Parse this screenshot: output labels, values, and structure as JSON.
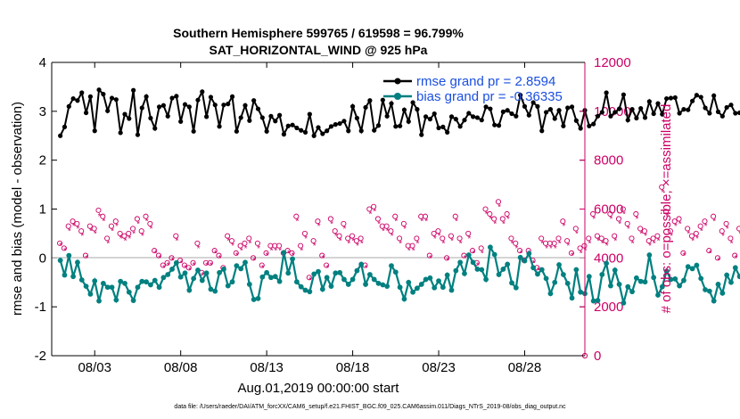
{
  "chart_data": {
    "type": "line",
    "title_line1": "Southern Hemisphere 599765 / 619598 = 96.799%",
    "title_line2": "SAT_HORIZONTAL_WIND @ 925 hPa",
    "ylabel_left": "rmse and bias (model - observation)",
    "ylabel_right": "# of obs: o=possible; ×=assimilated",
    "xlabel": "Aug.01,2019 00:00:00 start",
    "footer": "data file: /Users/raeder/DAI/ATM_forcXX/CAM6_setup/f.e21.FHIST_BGC.f09_025.CAM6assim.011/Diags_NTrS_2019-08/obs_diag_output.nc",
    "ylim_left": [
      -2,
      4
    ],
    "ylim_right": [
      0,
      12000
    ],
    "xlim_days": [
      0.5,
      31.5
    ],
    "left_ticks": [
      "4",
      "3",
      "2",
      "1",
      "0",
      "-1",
      "-2"
    ],
    "right_ticks": [
      "12000",
      "10000",
      "8000",
      "6000",
      "4000",
      "2000",
      "0"
    ],
    "x_ticks": [
      {
        "day": 3,
        "label": "08/03"
      },
      {
        "day": 8,
        "label": "08/08"
      },
      {
        "day": 13,
        "label": "08/13"
      },
      {
        "day": 18,
        "label": "08/18"
      },
      {
        "day": 23,
        "label": "08/23"
      },
      {
        "day": 28,
        "label": "08/28"
      }
    ],
    "legend": [
      {
        "name": "rmse grand pr = 2.8594",
        "color": "#000000"
      },
      {
        "name": "bias grand pr = -0.36335",
        "color": "#008080"
      }
    ],
    "steps_per_day": 4,
    "rmse": [
      2.5,
      2.68,
      3.1,
      3.26,
      3.22,
      3.38,
      2.97,
      3.3,
      2.6,
      3.44,
      3.35,
      3.01,
      3.27,
      3.24,
      2.56,
      2.94,
      2.85,
      3.43,
      2.52,
      3.07,
      3.3,
      2.86,
      2.65,
      3.09,
      3.12,
      2.9,
      3.27,
      3.31,
      2.79,
      3.14,
      3.09,
      2.59,
      3.23,
      3.4,
      2.89,
      3.29,
      3.13,
      2.69,
      3.13,
      3.15,
      3.3,
      2.59,
      2.87,
      3.12,
      2.81,
      3.22,
      3.05,
      2.87,
      2.59,
      2.9,
      2.8,
      2.92,
      2.53,
      2.7,
      2.72,
      2.66,
      2.61,
      2.57,
      2.94,
      2.5,
      2.67,
      2.54,
      2.6,
      2.69,
      2.73,
      2.75,
      2.8,
      2.6,
      3.1,
      2.86,
      2.6,
      3.08,
      3.22,
      2.61,
      2.71,
      3.23,
      2.9,
      3.16,
      2.69,
      2.7,
      3.03,
      2.79,
      3.18,
      3.04,
      2.52,
      2.89,
      2.84,
      2.95,
      2.66,
      2.68,
      2.57,
      2.89,
      2.84,
      2.69,
      2.82,
      2.96,
      2.89,
      2.87,
      2.82,
      3.09,
      3.05,
      2.72,
      2.71,
      2.99,
      3.02,
      2.95,
      2.9,
      3.33,
      3.1,
      2.92,
      3.18,
      3.1,
      2.6,
      2.98,
      3.04,
      2.85,
      3.02,
      2.7,
      3.07,
      3.09,
      2.81,
      2.65,
      3.02,
      2.7,
      2.74,
      2.9,
      2.98,
      3.38,
      2.9,
      2.98,
      3.05,
      3.34,
      2.82,
      3.04,
      2.86,
      3.06,
      2.87,
      3.2,
      2.95,
      3.16,
      2.94,
      3.26,
      3.27,
      3.28,
      2.96,
      3.04,
      3.03,
      3.21,
      3.33,
      3.29,
      3.07,
      2.96,
      3.32,
      2.99,
      2.9,
      3.08,
      3.13,
      2.96,
      2.97,
      2.82,
      2.95,
      3.23,
      2.85,
      2.81,
      2.88,
      2.69,
      3.08,
      2.8,
      2.74,
      2.82,
      3.21,
      2.77,
      2.8,
      3.05,
      2.77,
      2.67,
      3.06,
      2.85,
      3.37,
      3.07,
      2.96,
      2.98
    ],
    "bias": [
      -0.05,
      -0.35,
      0.05,
      -0.38,
      -0.09,
      -0.45,
      -0.58,
      -0.74,
      -0.47,
      -0.88,
      -0.52,
      -0.6,
      -0.6,
      -0.86,
      -0.48,
      -0.52,
      -0.7,
      -0.87,
      -0.6,
      -0.48,
      -0.49,
      -0.55,
      -0.46,
      -0.6,
      -0.4,
      -0.34,
      -0.23,
      -0.1,
      -0.39,
      -0.31,
      -0.66,
      -0.42,
      -0.25,
      -0.46,
      -0.31,
      -0.64,
      -0.68,
      -0.3,
      -0.23,
      -0.57,
      -0.49,
      -0.16,
      -0.22,
      -0.09,
      -0.54,
      -0.85,
      -0.83,
      -0.39,
      -0.3,
      -0.4,
      -0.38,
      -0.48,
      0.11,
      -0.31,
      -0.02,
      -0.49,
      -0.59,
      -0.66,
      -0.69,
      -0.33,
      -0.28,
      -0.64,
      -0.4,
      -0.58,
      -0.31,
      -0.3,
      -0.44,
      -0.54,
      -0.44,
      -0.26,
      -0.13,
      -0.54,
      -0.34,
      -0.44,
      -0.52,
      -0.55,
      -0.58,
      -0.16,
      -0.29,
      -0.6,
      -0.84,
      -0.5,
      -0.7,
      -0.62,
      -0.54,
      -0.44,
      -0.41,
      -0.61,
      -0.47,
      -0.6,
      -0.35,
      -0.66,
      -0.26,
      -0.09,
      -0.32,
      0.06,
      -0.09,
      -0.23,
      -0.24,
      -0.44,
      0.22,
      0.07,
      -0.34,
      -0.23,
      -0.13,
      -0.51,
      -0.61,
      0.01,
      -0.06,
      0.09,
      -0.2,
      -0.33,
      -0.24,
      -0.42,
      -0.73,
      -0.5,
      -0.14,
      -0.34,
      -0.52,
      -0.82,
      -0.24,
      -0.7,
      -0.73,
      -0.38,
      -0.88,
      -0.87,
      -0.34,
      -0.11,
      -0.57,
      -0.25,
      -0.54,
      -0.92,
      -0.59,
      -0.69,
      -0.41,
      -0.48,
      -0.49,
      0.06,
      -0.4,
      -0.76,
      -0.59,
      -0.27,
      -0.44,
      -0.43,
      -0.57,
      -0.46,
      -0.18,
      -0.22,
      -0.15,
      -0.42,
      -0.65,
      -0.68,
      -0.88,
      -0.54,
      -0.72,
      -0.35,
      -0.5,
      -0.2,
      -0.38,
      -0.55,
      -0.27,
      -0.86,
      -0.41,
      -0.6,
      -0.68,
      -0.5,
      -0.9,
      -0.56,
      -0.67,
      -0.57,
      -0.4,
      -0.73,
      -0.97,
      -0.66,
      -0.5,
      -0.5,
      -0.55,
      -0.5,
      -0.57,
      -0.27,
      -0.09,
      -0.38,
      -0.06,
      -0.2,
      -0.32,
      -0.24
    ],
    "obs_possible": [
      4600,
      4400,
      5300,
      5500,
      5400,
      5100,
      4100,
      5300,
      5200,
      5950,
      5700,
      4800,
      5300,
      5500,
      5000,
      4900,
      5000,
      5200,
      5600,
      5100,
      5700,
      5400,
      4300,
      4100,
      3700,
      3800,
      4000,
      4900,
      3900,
      3700,
      3600,
      3800,
      4600,
      3400,
      3800,
      3800,
      4300,
      4100,
      3600,
      4900,
      4700,
      4200,
      4500,
      4600,
      4800,
      4000,
      4600,
      3700,
      4200,
      4500,
      4500,
      4500,
      4200,
      4300,
      4200,
      5700,
      4500,
      5000,
      3200,
      4700,
      5500,
      4100,
      3700,
      5600,
      5100,
      4900,
      5400,
      4800,
      4900,
      4700,
      4800,
      3700,
      6000,
      6100,
      5600,
      5300,
      5300,
      5100,
      5700,
      4800,
      5400,
      4500,
      4500,
      4800,
      5700,
      5700,
      4100,
      5000,
      5100,
      4800,
      4000,
      4900,
      5700,
      4800,
      4100,
      5000,
      4300,
      3800,
      4400,
      6000,
      5800,
      5600,
      6300,
      5600,
      5800,
      4800,
      4600,
      4300,
      3900,
      4300,
      3900,
      3600,
      4800,
      4600,
      4600,
      4600,
      4800,
      5500,
      4700,
      4200,
      5200,
      4400,
      4500,
      4800,
      5800,
      4900,
      4800,
      4700,
      5800,
      4900,
      5600,
      6000,
      5400,
      4800,
      5800,
      5200,
      5100,
      4700,
      4800,
      4900,
      6900,
      5900,
      5100,
      5500,
      5600,
      4200,
      5200,
      4900,
      5000,
      5300,
      5500,
      4300,
      5700,
      4000,
      5100,
      5400,
      4800,
      4100,
      5200,
      4800,
      5300,
      4000,
      4600,
      3800,
      4200,
      3800,
      5600,
      4300,
      4200,
      5300,
      4500,
      5000,
      5300,
      5500,
      3200,
      4200,
      4600,
      4700,
      4200,
      4600,
      4700,
      3900
    ],
    "obs_assimilated": [
      4500,
      4300,
      5100,
      5300,
      5200,
      4900,
      4000,
      5100,
      5000,
      5700,
      5500,
      4600,
      5100,
      5300,
      4800,
      4700,
      4800,
      5000,
      5400,
      4900,
      5500,
      5200,
      4200,
      4000,
      3600,
      3700,
      3900,
      4700,
      3800,
      3600,
      3500,
      3700,
      4400,
      3300,
      3700,
      3700,
      4200,
      4000,
      3500,
      4700,
      4500,
      4100,
      4300,
      4400,
      4600,
      3900,
      4400,
      3600,
      4100,
      4300,
      4300,
      4300,
      4100,
      4200,
      4100,
      5500,
      4300,
      4800,
      3100,
      4500,
      5300,
      4000,
      3600,
      5400,
      4900,
      4700,
      5200,
      4600,
      4700,
      4500,
      4600,
      3600,
      5800,
      5900,
      5400,
      5100,
      5100,
      4900,
      5500,
      4600,
      5200,
      4300,
      4300,
      4600,
      5500,
      5500,
      4000,
      4800,
      4900,
      4600,
      3900,
      4700,
      5500,
      4600,
      4000,
      4800,
      4200,
      3700,
      4200,
      5800,
      5600,
      5400,
      6100,
      5400,
      5600,
      4600,
      4400,
      4200,
      3800,
      4200,
      3800,
      3500,
      4600,
      4400,
      4400,
      4400,
      4600,
      5300,
      4500,
      4100,
      5000,
      4200,
      4300,
      4600,
      5600,
      4700,
      4600,
      4500,
      5600,
      4700,
      5400,
      5800,
      5200,
      4600,
      5600,
      5000,
      4900,
      4500,
      4600,
      4700,
      6700,
      5700,
      4900,
      5300,
      5400,
      4100,
      5000,
      4700,
      4800,
      5100,
      5300,
      4200,
      5500,
      3900,
      4900,
      5200,
      4600,
      4000,
      5000,
      4600,
      5100,
      3900,
      4400,
      3700,
      4100,
      3700,
      5400,
      4200,
      4100,
      5100,
      4300,
      4800,
      5100,
      5300,
      3100,
      4100,
      4400,
      4500,
      4100,
      4400,
      4500,
      3800
    ]
  }
}
